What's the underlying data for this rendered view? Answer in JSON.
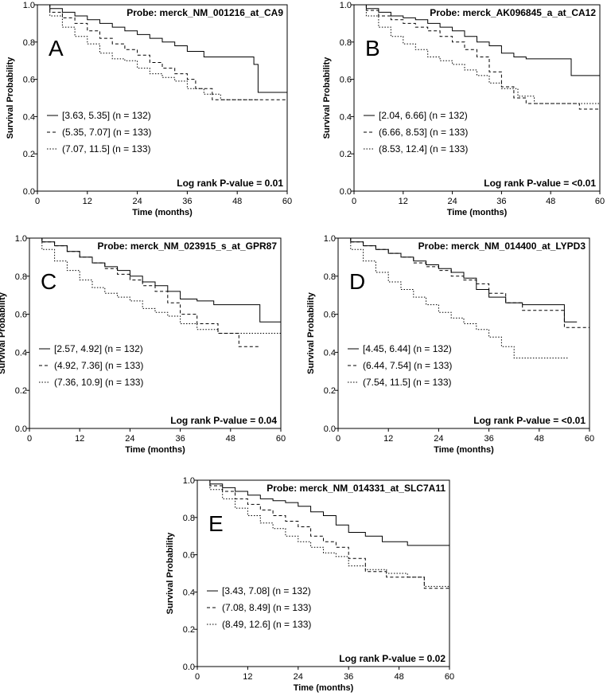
{
  "chart_data": [
    {
      "type": "line",
      "panel_letter": "A",
      "title": "Probe:  merck_NM_001216_at_CA9",
      "xlabel": "Time (months)",
      "ylabel": "Survival Probability",
      "xlim": [
        0,
        60
      ],
      "ylim": [
        0,
        1
      ],
      "xticks": [
        "0",
        "12",
        "24",
        "36",
        "48",
        "60"
      ],
      "yticks": [
        "0.0",
        "0.2",
        "0.4",
        "0.6",
        "0.8",
        "1.0"
      ],
      "pvalue": "Log rank P-value = 0.01",
      "series": [
        {
          "name": "[3.63, 5.35] (n = 132)",
          "style": "solid",
          "x": [
            0,
            3,
            6,
            9,
            12,
            15,
            18,
            21,
            24,
            27,
            30,
            33,
            36,
            40,
            44,
            48,
            52,
            53,
            60
          ],
          "y": [
            1.0,
            0.98,
            0.96,
            0.94,
            0.92,
            0.9,
            0.88,
            0.86,
            0.84,
            0.82,
            0.8,
            0.78,
            0.75,
            0.72,
            0.72,
            0.72,
            0.68,
            0.53,
            0.53
          ]
        },
        {
          "name": "(5.35, 7.07] (n = 133)",
          "style": "dashed",
          "x": [
            0,
            3,
            6,
            9,
            12,
            15,
            18,
            21,
            24,
            27,
            30,
            33,
            36,
            38,
            42,
            48,
            53,
            60
          ],
          "y": [
            1.0,
            0.96,
            0.93,
            0.9,
            0.86,
            0.82,
            0.79,
            0.76,
            0.73,
            0.69,
            0.66,
            0.63,
            0.6,
            0.55,
            0.49,
            0.49,
            0.49,
            0.49
          ]
        },
        {
          "name": "(7.07, 11.5] (n = 133)",
          "style": "dotted",
          "x": [
            0,
            3,
            6,
            9,
            12,
            15,
            18,
            21,
            24,
            27,
            30,
            33,
            36,
            40,
            44,
            48,
            53
          ],
          "y": [
            1.0,
            0.94,
            0.88,
            0.83,
            0.79,
            0.74,
            0.71,
            0.7,
            0.66,
            0.63,
            0.61,
            0.59,
            0.55,
            0.52,
            0.49,
            0.49,
            0.49
          ]
        }
      ]
    },
    {
      "type": "line",
      "panel_letter": "B",
      "title": "Probe:  merck_AK096845_a_at_CA12",
      "xlabel": "Time (months)",
      "ylabel": "Survival Probability",
      "xlim": [
        0,
        60
      ],
      "ylim": [
        0,
        1
      ],
      "xticks": [
        "0",
        "12",
        "24",
        "36",
        "48",
        "60"
      ],
      "yticks": [
        "0.0",
        "0.2",
        "0.4",
        "0.6",
        "0.8",
        "1.0"
      ],
      "pvalue": "Log rank P-value = <0.01",
      "series": [
        {
          "name": "[2.04, 6.66] (n = 132)",
          "style": "solid",
          "x": [
            0,
            3,
            6,
            9,
            12,
            15,
            18,
            21,
            24,
            27,
            30,
            33,
            36,
            39,
            42,
            46,
            50,
            53,
            60
          ],
          "y": [
            1.0,
            0.98,
            0.96,
            0.94,
            0.93,
            0.92,
            0.9,
            0.88,
            0.86,
            0.83,
            0.8,
            0.78,
            0.74,
            0.72,
            0.71,
            0.71,
            0.71,
            0.62,
            0.62
          ]
        },
        {
          "name": "(6.66, 8.53] (n = 133)",
          "style": "dashed",
          "x": [
            0,
            3,
            6,
            9,
            12,
            15,
            18,
            21,
            24,
            27,
            30,
            33,
            36,
            39,
            42,
            48,
            55,
            60
          ],
          "y": [
            1.0,
            0.97,
            0.94,
            0.92,
            0.9,
            0.88,
            0.86,
            0.83,
            0.8,
            0.76,
            0.72,
            0.64,
            0.56,
            0.5,
            0.47,
            0.47,
            0.44,
            0.44
          ]
        },
        {
          "name": "(8.53, 12.4] (n = 133)",
          "style": "dotted",
          "x": [
            0,
            3,
            6,
            9,
            12,
            15,
            18,
            21,
            24,
            27,
            30,
            33,
            36,
            40,
            44,
            50,
            55,
            60
          ],
          "y": [
            1.0,
            0.94,
            0.88,
            0.83,
            0.79,
            0.76,
            0.72,
            0.7,
            0.68,
            0.65,
            0.62,
            0.58,
            0.55,
            0.51,
            0.47,
            0.47,
            0.47,
            0.47
          ]
        }
      ]
    },
    {
      "type": "line",
      "panel_letter": "C",
      "title": "Probe:  merck_NM_023915_s_at_GPR87",
      "xlabel": "Time (months)",
      "ylabel": "Survival Probability",
      "xlim": [
        0,
        60
      ],
      "ylim": [
        0,
        1
      ],
      "xticks": [
        "0",
        "12",
        "24",
        "36",
        "48",
        "60"
      ],
      "yticks": [
        "0.0",
        "0.2",
        "0.4",
        "0.6",
        "0.8",
        "1.0"
      ],
      "pvalue": "Log rank P-value = 0.04",
      "series": [
        {
          "name": "[2.57, 4.92] (n = 132)",
          "style": "solid",
          "x": [
            0,
            3,
            6,
            9,
            12,
            15,
            18,
            21,
            24,
            27,
            30,
            33,
            36,
            40,
            44,
            48,
            52,
            55,
            60
          ],
          "y": [
            1.0,
            0.98,
            0.96,
            0.93,
            0.9,
            0.87,
            0.85,
            0.83,
            0.8,
            0.77,
            0.75,
            0.72,
            0.68,
            0.67,
            0.65,
            0.65,
            0.65,
            0.56,
            0.56
          ]
        },
        {
          "name": "(4.92, 7.36] (n = 133)",
          "style": "dashed",
          "x": [
            0,
            3,
            6,
            9,
            12,
            15,
            18,
            21,
            24,
            27,
            30,
            33,
            36,
            40,
            45,
            50,
            55
          ],
          "y": [
            1.0,
            0.98,
            0.96,
            0.93,
            0.9,
            0.87,
            0.84,
            0.81,
            0.78,
            0.75,
            0.72,
            0.66,
            0.6,
            0.55,
            0.5,
            0.43,
            0.43
          ]
        },
        {
          "name": "(7.36, 10.9] (n = 133)",
          "style": "dotted",
          "x": [
            0,
            3,
            6,
            9,
            12,
            15,
            18,
            21,
            24,
            27,
            30,
            33,
            36,
            40,
            45,
            50,
            60
          ],
          "y": [
            1.0,
            0.94,
            0.88,
            0.83,
            0.78,
            0.74,
            0.71,
            0.69,
            0.67,
            0.63,
            0.61,
            0.59,
            0.55,
            0.52,
            0.5,
            0.5,
            0.5
          ]
        }
      ]
    },
    {
      "type": "line",
      "panel_letter": "D",
      "title": "Probe:  merck_NM_014400_at_LYPD3",
      "xlabel": "Time (months)",
      "ylabel": "Survival Probability",
      "xlim": [
        0,
        60
      ],
      "ylim": [
        0,
        1
      ],
      "xticks": [
        "0",
        "12",
        "24",
        "36",
        "48",
        "60"
      ],
      "yticks": [
        "0.0",
        "0.2",
        "0.4",
        "0.6",
        "0.8",
        "1.0"
      ],
      "pvalue": "Log rank P-value = <0.01",
      "series": [
        {
          "name": "[4.45, 6.44] (n = 132)",
          "style": "solid",
          "x": [
            0,
            3,
            6,
            9,
            12,
            15,
            18,
            21,
            24,
            27,
            30,
            33,
            36,
            40,
            44,
            50,
            54,
            57
          ],
          "y": [
            1.0,
            0.98,
            0.96,
            0.94,
            0.92,
            0.9,
            0.88,
            0.86,
            0.84,
            0.82,
            0.79,
            0.73,
            0.69,
            0.66,
            0.65,
            0.65,
            0.56,
            0.56
          ]
        },
        {
          "name": "(6.44, 7.54] (n = 133)",
          "style": "dashed",
          "x": [
            0,
            3,
            6,
            9,
            12,
            15,
            18,
            21,
            24,
            27,
            30,
            33,
            36,
            40,
            44,
            50,
            54,
            60
          ],
          "y": [
            1.0,
            0.98,
            0.96,
            0.94,
            0.92,
            0.9,
            0.87,
            0.85,
            0.83,
            0.8,
            0.78,
            0.76,
            0.71,
            0.66,
            0.62,
            0.62,
            0.53,
            0.53
          ]
        },
        {
          "name": "(7.54, 11.5] (n = 133)",
          "style": "dotted",
          "x": [
            0,
            3,
            6,
            9,
            12,
            15,
            18,
            21,
            24,
            27,
            30,
            33,
            36,
            39,
            42,
            48,
            55
          ],
          "y": [
            1.0,
            0.94,
            0.88,
            0.82,
            0.77,
            0.73,
            0.69,
            0.65,
            0.61,
            0.58,
            0.55,
            0.52,
            0.48,
            0.43,
            0.37,
            0.37,
            0.37
          ]
        }
      ]
    },
    {
      "type": "line",
      "panel_letter": "E",
      "title": "Probe:  merck_NM_014331_at_SLC7A11",
      "xlabel": "Time (months)",
      "ylabel": "Survival Probability",
      "xlim": [
        0,
        60
      ],
      "ylim": [
        0,
        1
      ],
      "xticks": [
        "0",
        "12",
        "24",
        "36",
        "48",
        "60"
      ],
      "yticks": [
        "0.0",
        "0.2",
        "0.4",
        "0.6",
        "0.8",
        "1.0"
      ],
      "pvalue": "Log rank P-value = 0.02",
      "series": [
        {
          "name": "[3.43, 7.08] (n = 132)",
          "style": "solid",
          "x": [
            0,
            3,
            6,
            9,
            12,
            15,
            18,
            21,
            24,
            27,
            30,
            33,
            36,
            40,
            44,
            50,
            55,
            60
          ],
          "y": [
            1.0,
            0.98,
            0.96,
            0.94,
            0.92,
            0.9,
            0.89,
            0.88,
            0.86,
            0.83,
            0.81,
            0.76,
            0.72,
            0.7,
            0.67,
            0.65,
            0.65,
            0.65
          ]
        },
        {
          "name": "(7.08, 8.49] (n = 133)",
          "style": "dashed",
          "x": [
            0,
            3,
            6,
            9,
            12,
            15,
            18,
            21,
            24,
            27,
            30,
            33,
            36,
            40,
            45,
            50,
            54,
            60
          ],
          "y": [
            1.0,
            0.97,
            0.94,
            0.9,
            0.87,
            0.84,
            0.81,
            0.78,
            0.75,
            0.7,
            0.67,
            0.64,
            0.58,
            0.51,
            0.48,
            0.48,
            0.42,
            0.42
          ]
        },
        {
          "name": "(8.49, 12.6] (n = 133)",
          "style": "dotted",
          "x": [
            0,
            3,
            6,
            9,
            12,
            15,
            18,
            21,
            24,
            27,
            30,
            33,
            36,
            40,
            45,
            50,
            54,
            60
          ],
          "y": [
            1.0,
            0.95,
            0.9,
            0.85,
            0.81,
            0.77,
            0.74,
            0.7,
            0.67,
            0.64,
            0.61,
            0.59,
            0.54,
            0.52,
            0.5,
            0.48,
            0.43,
            0.43
          ]
        }
      ]
    }
  ]
}
